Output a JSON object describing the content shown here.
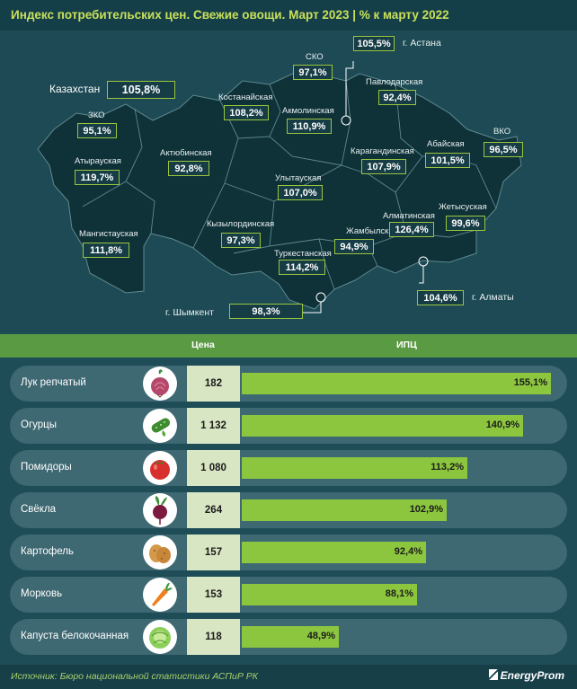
{
  "header": {
    "title": "Индекс потребительских цен. Свежие овощи. Март 2023 | % к марту 2022"
  },
  "map": {
    "country_label": "Казахстан",
    "country_value": "105,8%",
    "regions": [
      {
        "name": "ЗКО",
        "value": "95,1%"
      },
      {
        "name": "Атырауская",
        "value": "119,7%"
      },
      {
        "name": "Мангистауская",
        "value": "111,8%"
      },
      {
        "name": "Актюбинская",
        "value": "92,8%"
      },
      {
        "name": "Костанайская",
        "value": "108,2%"
      },
      {
        "name": "СКО",
        "value": "97,1%"
      },
      {
        "name": "Акмолинская",
        "value": "110,9%"
      },
      {
        "name": "Павлодарская",
        "value": "92,4%"
      },
      {
        "name": "Карагандинская",
        "value": "107,9%"
      },
      {
        "name": "Абайская",
        "value": "101,5%"
      },
      {
        "name": "ВКО",
        "value": "96,5%"
      },
      {
        "name": "Улытауская",
        "value": "107,0%"
      },
      {
        "name": "Кызылординская",
        "value": "97,3%"
      },
      {
        "name": "Туркестанская",
        "value": "114,2%"
      },
      {
        "name": "Жамбылская",
        "value": "94,9%"
      },
      {
        "name": "Алматинская",
        "value": "126,4%"
      },
      {
        "name": "Жетысуская",
        "value": "99,6%"
      }
    ],
    "cities": [
      {
        "name": "г. Астана",
        "value": "105,5%"
      },
      {
        "name": "г. Шымкент",
        "value": "98,3%"
      },
      {
        "name": "г. Алматы",
        "value": "104,6%"
      }
    ]
  },
  "table": {
    "price_header": "Цена",
    "cpi_header": "ИПЦ"
  },
  "chart_data": {
    "type": "bar",
    "categories": [
      "Лук репчатый",
      "Огурцы",
      "Помидоры",
      "Свёкла",
      "Картофель",
      "Морковь",
      "Капуста белокочанная"
    ],
    "prices": [
      "182",
      "1 132",
      "1 080",
      "264",
      "157",
      "153",
      "118"
    ],
    "values": [
      155.1,
      140.9,
      113.2,
      102.9,
      92.4,
      88.1,
      48.9
    ],
    "value_labels": [
      "155,1%",
      "140,9%",
      "113,2%",
      "102,9%",
      "92,4%",
      "88,1%",
      "48,9%"
    ],
    "icons": [
      "onion-icon",
      "cucumber-icon",
      "tomato-icon",
      "beet-icon",
      "potato-icon",
      "carrot-icon",
      "cabbage-icon"
    ],
    "colors": {
      "bar": "#8cc63f",
      "pill": "#3e6872",
      "price_cell": "#d9e6c3"
    }
  },
  "footer": {
    "source": "Источник: Бюро национальной статистики АСПиР РК",
    "brand": "EnergyProm"
  }
}
